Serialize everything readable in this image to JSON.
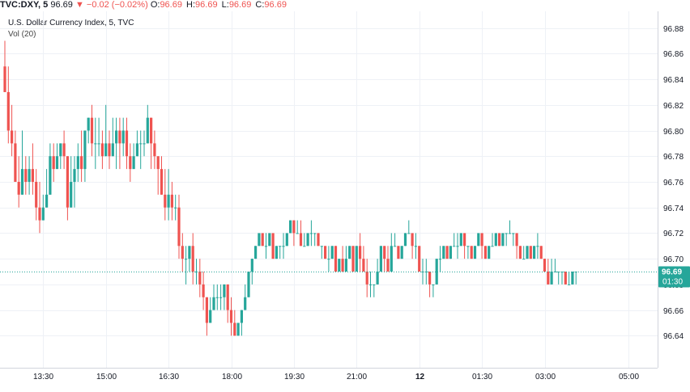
{
  "header": {
    "symbol": "TVC:DXY, 5",
    "last": "96.69",
    "change_arrow": "▼",
    "change": "−0.02 (−0.02%)",
    "o_label": "O:",
    "o_val": "96.69",
    "h_label": "H:",
    "h_val": "96.69",
    "l_label": "L:",
    "l_val": "96.69",
    "c_label": "C:",
    "c_val": "96.69"
  },
  "legend": {
    "title": "U.S. Dollar Currency Index, 5, TVC",
    "volume": "Vol (20)"
  },
  "price_tag": {
    "value": "96.69",
    "countdown": "01:30"
  },
  "colors": {
    "up": "#26a69a",
    "down": "#ef5350",
    "grid": "#eef1f6",
    "price_line": "#26a69a",
    "tag_bg": "#26a69a"
  },
  "chart_data": {
    "type": "candlestick",
    "title": "U.S. Dollar Currency Index, 5, TVC",
    "grid": true,
    "ylim": [
      96.615,
      96.893
    ],
    "y_ticks": [
      "96.64",
      "96.66",
      "96.68",
      "96.70",
      "96.72",
      "96.74",
      "96.76",
      "96.78",
      "96.80",
      "96.82",
      "96.84",
      "96.86",
      "96.88"
    ],
    "x_ticks": [
      {
        "label": "13:30",
        "index": 11,
        "bold": false
      },
      {
        "label": "15:00",
        "index": 29,
        "bold": false
      },
      {
        "label": "16:30",
        "index": 47,
        "bold": false
      },
      {
        "label": "18:00",
        "index": 65,
        "bold": false
      },
      {
        "label": "19:30",
        "index": 83,
        "bold": false
      },
      {
        "label": "21:00",
        "index": 101,
        "bold": false
      },
      {
        "label": "12",
        "index": 119,
        "bold": true
      },
      {
        "label": "01:30",
        "index": 137,
        "bold": false
      },
      {
        "label": "03:00",
        "index": 155,
        "bold": false
      },
      {
        "label": "05:00",
        "index": 179,
        "bold": false
      }
    ],
    "current_price": 96.69,
    "candles": [
      [
        96.85,
        96.87,
        96.83,
        96.83
      ],
      [
        96.83,
        96.85,
        96.79,
        96.8
      ],
      [
        96.8,
        96.82,
        96.78,
        96.79
      ],
      [
        96.79,
        96.8,
        96.76,
        96.76
      ],
      [
        96.76,
        96.78,
        96.74,
        96.75
      ],
      [
        96.75,
        96.8,
        96.75,
        96.77
      ],
      [
        96.77,
        96.78,
        96.75,
        96.76
      ],
      [
        96.76,
        96.78,
        96.75,
        96.77
      ],
      [
        96.77,
        96.79,
        96.75,
        96.76
      ],
      [
        96.76,
        96.77,
        96.73,
        96.74
      ],
      [
        96.74,
        96.76,
        96.72,
        96.73
      ],
      [
        96.73,
        96.75,
        96.73,
        96.74
      ],
      [
        96.74,
        96.77,
        96.74,
        96.75
      ],
      [
        96.75,
        96.79,
        96.75,
        96.78
      ],
      [
        96.78,
        96.79,
        96.76,
        96.77
      ],
      [
        96.77,
        96.79,
        96.77,
        96.78
      ],
      [
        96.78,
        96.79,
        96.77,
        96.79
      ],
      [
        96.79,
        96.8,
        96.77,
        96.78
      ],
      [
        96.78,
        96.78,
        96.73,
        96.74
      ],
      [
        96.74,
        96.78,
        96.74,
        96.76
      ],
      [
        96.76,
        96.78,
        96.74,
        96.77
      ],
      [
        96.77,
        96.79,
        96.76,
        96.78
      ],
      [
        96.78,
        96.8,
        96.76,
        96.77
      ],
      [
        96.77,
        96.8,
        96.76,
        96.8
      ],
      [
        96.8,
        96.81,
        96.79,
        96.81
      ],
      [
        96.81,
        96.82,
        96.78,
        96.79
      ],
      [
        96.79,
        96.81,
        96.77,
        96.79
      ],
      [
        96.79,
        96.81,
        96.78,
        96.79
      ],
      [
        96.79,
        96.8,
        96.77,
        96.78
      ],
      [
        96.78,
        96.82,
        96.78,
        96.79
      ],
      [
        96.79,
        96.8,
        96.77,
        96.78
      ],
      [
        96.78,
        96.81,
        96.78,
        96.79
      ],
      [
        96.79,
        96.81,
        96.77,
        96.8
      ],
      [
        96.8,
        96.81,
        96.77,
        96.79
      ],
      [
        96.79,
        96.81,
        96.78,
        96.8
      ],
      [
        96.8,
        96.81,
        96.77,
        96.78
      ],
      [
        96.78,
        96.79,
        96.76,
        96.77
      ],
      [
        96.77,
        96.79,
        96.77,
        96.78
      ],
      [
        96.78,
        96.8,
        96.78,
        96.79
      ],
      [
        96.79,
        96.8,
        96.77,
        96.79
      ],
      [
        96.79,
        96.8,
        96.78,
        96.79
      ],
      [
        96.79,
        96.82,
        96.79,
        96.81
      ],
      [
        96.81,
        96.81,
        96.77,
        96.79
      ],
      [
        96.79,
        96.8,
        96.77,
        96.78
      ],
      [
        96.78,
        96.78,
        96.75,
        96.77
      ],
      [
        96.77,
        96.78,
        96.75,
        96.75
      ],
      [
        96.75,
        96.77,
        96.73,
        96.74
      ],
      [
        96.74,
        96.77,
        96.73,
        96.75
      ],
      [
        96.75,
        96.76,
        96.73,
        96.74
      ],
      [
        96.74,
        96.75,
        96.73,
        96.74
      ],
      [
        96.74,
        96.75,
        96.7,
        96.71
      ],
      [
        96.71,
        96.72,
        96.69,
        96.7
      ],
      [
        96.7,
        96.71,
        96.68,
        96.7
      ],
      [
        96.7,
        96.71,
        96.69,
        96.71
      ],
      [
        96.71,
        96.72,
        96.68,
        96.69
      ],
      [
        96.69,
        96.7,
        96.68,
        96.69
      ],
      [
        96.69,
        96.7,
        96.67,
        96.68
      ],
      [
        96.68,
        96.69,
        96.66,
        96.67
      ],
      [
        96.67,
        96.67,
        96.64,
        96.65
      ],
      [
        96.65,
        96.67,
        96.65,
        96.66
      ],
      [
        96.66,
        96.68,
        96.66,
        96.67
      ],
      [
        96.67,
        96.68,
        96.66,
        96.67
      ],
      [
        96.67,
        96.68,
        96.66,
        96.67
      ],
      [
        96.67,
        96.68,
        96.66,
        96.68
      ],
      [
        96.68,
        96.68,
        96.65,
        96.66
      ],
      [
        96.66,
        96.67,
        96.64,
        96.65
      ],
      [
        96.65,
        96.66,
        96.64,
        96.64
      ],
      [
        96.64,
        96.65,
        96.64,
        96.65
      ],
      [
        96.65,
        96.66,
        96.64,
        96.66
      ],
      [
        96.66,
        96.68,
        96.66,
        96.67
      ],
      [
        96.67,
        96.69,
        96.67,
        96.69
      ],
      [
        96.69,
        96.7,
        96.68,
        96.7
      ],
      [
        96.7,
        96.71,
        96.7,
        96.71
      ],
      [
        96.71,
        96.72,
        96.71,
        96.72
      ],
      [
        96.72,
        96.72,
        96.71,
        96.71
      ],
      [
        96.71,
        96.72,
        96.7,
        96.71
      ],
      [
        96.71,
        96.72,
        96.71,
        96.72
      ],
      [
        96.72,
        96.72,
        96.7,
        96.7
      ],
      [
        96.7,
        96.71,
        96.7,
        96.71
      ],
      [
        96.71,
        96.71,
        96.7,
        96.71
      ],
      [
        96.71,
        96.72,
        96.7,
        96.71
      ],
      [
        96.71,
        96.72,
        96.71,
        96.72
      ],
      [
        96.72,
        96.73,
        96.72,
        96.73
      ],
      [
        96.73,
        96.73,
        96.71,
        96.72
      ],
      [
        96.72,
        96.73,
        96.72,
        96.72
      ],
      [
        96.72,
        96.73,
        96.71,
        96.71
      ],
      [
        96.71,
        96.72,
        96.71,
        96.71
      ],
      [
        96.71,
        96.72,
        96.71,
        96.72
      ],
      [
        96.72,
        96.73,
        96.71,
        96.72
      ],
      [
        96.72,
        96.72,
        96.71,
        96.72
      ],
      [
        96.72,
        96.72,
        96.71,
        96.71
      ],
      [
        96.71,
        96.71,
        96.7,
        96.71
      ],
      [
        96.71,
        96.71,
        96.7,
        96.7
      ],
      [
        96.7,
        96.71,
        96.69,
        96.7
      ],
      [
        96.7,
        96.71,
        96.7,
        96.71
      ],
      [
        96.71,
        96.71,
        96.69,
        96.69
      ],
      [
        96.69,
        96.7,
        96.69,
        96.7
      ],
      [
        96.7,
        96.71,
        96.69,
        96.69
      ],
      [
        96.69,
        96.71,
        96.69,
        96.7
      ],
      [
        96.7,
        96.71,
        96.7,
        96.71
      ],
      [
        96.71,
        96.71,
        96.69,
        96.69
      ],
      [
        96.69,
        96.71,
        96.69,
        96.71
      ],
      [
        96.71,
        96.72,
        96.69,
        96.7
      ],
      [
        96.7,
        96.71,
        96.69,
        96.69
      ],
      [
        96.69,
        96.7,
        96.67,
        96.68
      ],
      [
        96.68,
        96.69,
        96.67,
        96.68
      ],
      [
        96.68,
        96.68,
        96.67,
        96.68
      ],
      [
        96.68,
        96.7,
        96.68,
        96.69
      ],
      [
        96.69,
        96.71,
        96.69,
        96.71
      ],
      [
        96.71,
        96.71,
        96.69,
        96.7
      ],
      [
        96.7,
        96.71,
        96.69,
        96.69
      ],
      [
        96.69,
        96.72,
        96.69,
        96.71
      ],
      [
        96.71,
        96.72,
        96.71,
        96.71
      ],
      [
        96.71,
        96.71,
        96.7,
        96.7
      ],
      [
        96.7,
        96.71,
        96.7,
        96.71
      ],
      [
        96.71,
        96.72,
        96.71,
        96.72
      ],
      [
        96.72,
        96.73,
        96.72,
        96.72
      ],
      [
        96.72,
        96.72,
        96.7,
        96.71
      ],
      [
        96.71,
        96.72,
        96.7,
        96.71
      ],
      [
        96.71,
        96.71,
        96.69,
        96.69
      ],
      [
        96.69,
        96.7,
        96.68,
        96.69
      ],
      [
        96.69,
        96.7,
        96.68,
        96.69
      ],
      [
        96.69,
        96.69,
        96.67,
        96.68
      ],
      [
        96.68,
        96.68,
        96.67,
        96.68
      ],
      [
        96.68,
        96.7,
        96.68,
        96.7
      ],
      [
        96.7,
        96.71,
        96.69,
        96.7
      ],
      [
        96.7,
        96.71,
        96.7,
        96.71
      ],
      [
        96.71,
        96.71,
        96.7,
        96.7
      ],
      [
        96.7,
        96.71,
        96.7,
        96.71
      ],
      [
        96.71,
        96.72,
        96.71,
        96.71
      ],
      [
        96.71,
        96.72,
        96.7,
        96.71
      ],
      [
        96.71,
        96.72,
        96.71,
        96.72
      ],
      [
        96.72,
        96.72,
        96.7,
        96.71
      ],
      [
        96.71,
        96.71,
        96.7,
        96.71
      ],
      [
        96.71,
        96.71,
        96.7,
        96.7
      ],
      [
        96.7,
        96.71,
        96.7,
        96.71
      ],
      [
        96.71,
        96.72,
        96.71,
        96.72
      ],
      [
        96.72,
        96.72,
        96.7,
        96.71
      ],
      [
        96.71,
        96.71,
        96.7,
        96.7
      ],
      [
        96.7,
        96.71,
        96.7,
        96.71
      ],
      [
        96.71,
        96.72,
        96.71,
        96.71
      ],
      [
        96.71,
        96.72,
        96.71,
        96.72
      ],
      [
        96.72,
        96.72,
        96.71,
        96.71
      ],
      [
        96.71,
        96.72,
        96.71,
        96.72
      ],
      [
        96.72,
        96.72,
        96.71,
        96.72
      ],
      [
        96.72,
        96.73,
        96.72,
        96.72
      ],
      [
        96.72,
        96.72,
        96.71,
        96.72
      ],
      [
        96.72,
        96.72,
        96.7,
        96.71
      ],
      [
        96.71,
        96.71,
        96.7,
        96.7
      ],
      [
        96.7,
        96.71,
        96.7,
        96.7
      ],
      [
        96.7,
        96.71,
        96.7,
        96.71
      ],
      [
        96.71,
        96.71,
        96.7,
        96.7
      ],
      [
        96.7,
        96.71,
        96.7,
        96.71
      ],
      [
        96.71,
        96.72,
        96.7,
        96.71
      ],
      [
        96.71,
        96.71,
        96.7,
        96.7
      ],
      [
        96.7,
        96.7,
        96.69,
        96.69
      ],
      [
        96.69,
        96.7,
        96.68,
        96.68
      ],
      [
        96.68,
        96.7,
        96.68,
        96.69
      ],
      [
        96.69,
        96.7,
        96.69,
        96.69
      ],
      [
        96.69,
        96.69,
        96.68,
        96.69
      ],
      [
        96.69,
        96.69,
        96.68,
        96.69
      ],
      [
        96.69,
        96.69,
        96.68,
        96.68
      ],
      [
        96.68,
        96.69,
        96.68,
        96.68
      ],
      [
        96.68,
        96.69,
        96.68,
        96.69
      ],
      [
        96.69,
        96.69,
        96.68,
        96.69
      ]
    ]
  }
}
